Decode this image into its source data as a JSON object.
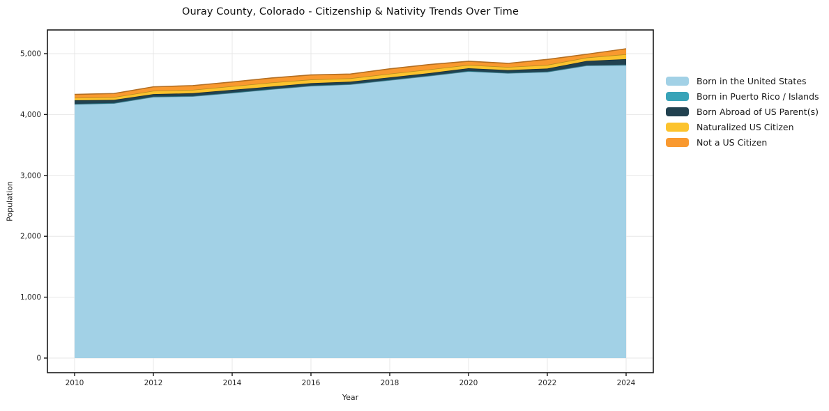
{
  "chart_data": {
    "type": "area",
    "stacked": true,
    "title": "Ouray County, Colorado - Citizenship & Nativity Trends Over Time",
    "xlabel": "Year",
    "ylabel": "Population",
    "x": [
      2010,
      2011,
      2012,
      2013,
      2014,
      2015,
      2016,
      2017,
      2018,
      2019,
      2020,
      2021,
      2022,
      2023,
      2024
    ],
    "series": [
      {
        "name": "Born in the United States",
        "color": "#a2d1e6",
        "values": [
          4170,
          4185,
          4290,
          4300,
          4355,
          4415,
          4470,
          4495,
          4565,
          4635,
          4710,
          4680,
          4700,
          4805,
          4810
        ]
      },
      {
        "name": "Born in Puerto Rico / Islands",
        "color": "#38a3b8",
        "values": [
          5,
          5,
          5,
          5,
          5,
          5,
          5,
          5,
          5,
          5,
          5,
          5,
          5,
          5,
          10
        ]
      },
      {
        "name": "Born Abroad of US Parent(s)",
        "color": "#21414f",
        "values": [
          60,
          50,
          40,
          45,
          45,
          40,
          40,
          40,
          40,
          40,
          45,
          45,
          50,
          70,
          90
        ]
      },
      {
        "name": "Naturalized US Citizen",
        "color": "#fcc32d",
        "values": [
          40,
          45,
          55,
          55,
          60,
          65,
          60,
          55,
          60,
          60,
          55,
          50,
          60,
          55,
          80
        ]
      },
      {
        "name": "Not a US Citizen",
        "color": "#f9992f",
        "values": [
          55,
          60,
          65,
          70,
          70,
          75,
          75,
          70,
          80,
          80,
          60,
          60,
          90,
          55,
          90
        ]
      }
    ],
    "xticks": [
      2010,
      2012,
      2014,
      2016,
      2018,
      2020,
      2022,
      2024
    ],
    "yticks": [
      0,
      1000,
      2000,
      3000,
      4000,
      5000
    ],
    "ytick_labels": [
      "0",
      "1,000",
      "2,000",
      "3,000",
      "4,000",
      "5,000"
    ],
    "ylim": [
      0,
      5000
    ],
    "grid": true,
    "legend_position": "right",
    "grid_color": "#e7e7e7",
    "spine_color": "#1a1a1a",
    "tick_label_color": "#262626"
  }
}
